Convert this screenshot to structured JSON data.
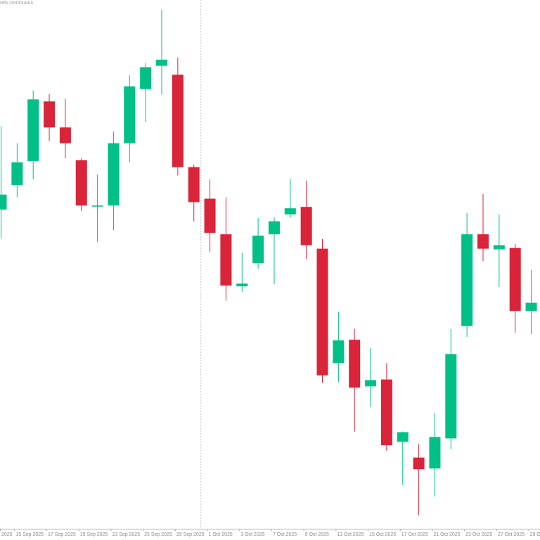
{
  "header": {
    "symbol_text": "rels continuous"
  },
  "colors": {
    "bull": "#00c087",
    "bear": "#d9243a",
    "grid": "#c8c8c8",
    "axis": "#b0b0b0",
    "text": "#8a8a8a",
    "background": "#ffffff"
  },
  "chart_data": {
    "type": "candlestick",
    "title": "",
    "xlabel": "",
    "ylabel": "",
    "price_axis_visible": false,
    "grid": false,
    "legend": "none",
    "vertical_marker": {
      "after_index": 12,
      "style": "dashed"
    },
    "ylim": [
      0,
      768
    ],
    "x_tick_labels": [
      {
        "index": 0,
        "label": "2025"
      },
      {
        "index": 1,
        "label": "15 Sep 2025"
      },
      {
        "index": 3,
        "label": "17 Sep 2025"
      },
      {
        "index": 5,
        "label": "19 Sep 2025"
      },
      {
        "index": 7,
        "label": "23 Sep 2025"
      },
      {
        "index": 9,
        "label": "25 Sep 2025"
      },
      {
        "index": 11,
        "label": "29 Sep 2025"
      },
      {
        "index": 13,
        "label": "1 Oct 2025"
      },
      {
        "index": 15,
        "label": "3 Oct 2025"
      },
      {
        "index": 17,
        "label": "7 Oct 2025"
      },
      {
        "index": 19,
        "label": "9 Oct 2025"
      },
      {
        "index": 21,
        "label": "13 Oct 2025"
      },
      {
        "index": 23,
        "label": "15 Oct 2025"
      },
      {
        "index": 25,
        "label": "17 Oct 2025"
      },
      {
        "index": 27,
        "label": "21 Oct 2025"
      },
      {
        "index": 29,
        "label": "23 Oct 2025"
      },
      {
        "index": 31,
        "label": "27 Oct 2025"
      },
      {
        "index": 33,
        "label": "29 O"
      }
    ],
    "candles": [
      {
        "open": 466,
        "high": 588,
        "low": 424,
        "close": 488
      },
      {
        "open": 502,
        "high": 563,
        "low": 484,
        "close": 535
      },
      {
        "open": 537,
        "high": 640,
        "low": 510,
        "close": 627
      },
      {
        "open": 624,
        "high": 635,
        "low": 566,
        "close": 586
      },
      {
        "open": 586,
        "high": 628,
        "low": 541,
        "close": 563
      },
      {
        "open": 538,
        "high": 541,
        "low": 464,
        "close": 472
      },
      {
        "open": 472,
        "high": 517,
        "low": 419,
        "close": 472
      },
      {
        "open": 472,
        "high": 580,
        "low": 436,
        "close": 563
      },
      {
        "open": 563,
        "high": 662,
        "low": 535,
        "close": 646
      },
      {
        "open": 642,
        "high": 680,
        "low": 594,
        "close": 674
      },
      {
        "open": 676,
        "high": 758,
        "low": 634,
        "close": 685
      },
      {
        "open": 663,
        "high": 688,
        "low": 516,
        "close": 528
      },
      {
        "open": 528,
        "high": 532,
        "low": 449,
        "close": 477
      },
      {
        "open": 482,
        "high": 510,
        "low": 404,
        "close": 432
      },
      {
        "open": 430,
        "high": 484,
        "low": 333,
        "close": 355
      },
      {
        "open": 354,
        "high": 403,
        "low": 346,
        "close": 358
      },
      {
        "open": 388,
        "high": 454,
        "low": 380,
        "close": 428
      },
      {
        "open": 430,
        "high": 455,
        "low": 357,
        "close": 449
      },
      {
        "open": 459,
        "high": 511,
        "low": 454,
        "close": 468
      },
      {
        "open": 470,
        "high": 508,
        "low": 394,
        "close": 414
      },
      {
        "open": 409,
        "high": 423,
        "low": 213,
        "close": 224
      },
      {
        "open": 242,
        "high": 317,
        "low": 214,
        "close": 275
      },
      {
        "open": 276,
        "high": 292,
        "low": 142,
        "close": 206
      },
      {
        "open": 208,
        "high": 264,
        "low": 178,
        "close": 217
      },
      {
        "open": 218,
        "high": 242,
        "low": 114,
        "close": 122
      },
      {
        "open": 127,
        "high": 142,
        "low": 64,
        "close": 141
      },
      {
        "open": 104,
        "high": 124,
        "low": 20,
        "close": 87
      },
      {
        "open": 88,
        "high": 169,
        "low": 47,
        "close": 134
      },
      {
        "open": 132,
        "high": 292,
        "low": 116,
        "close": 255
      },
      {
        "open": 296,
        "high": 461,
        "low": 280,
        "close": 430
      },
      {
        "open": 430,
        "high": 489,
        "low": 391,
        "close": 409
      },
      {
        "open": 408,
        "high": 459,
        "low": 353,
        "close": 414
      },
      {
        "open": 410,
        "high": 416,
        "low": 286,
        "close": 318
      },
      {
        "open": 318,
        "high": 378,
        "low": 284,
        "close": 330
      }
    ]
  }
}
